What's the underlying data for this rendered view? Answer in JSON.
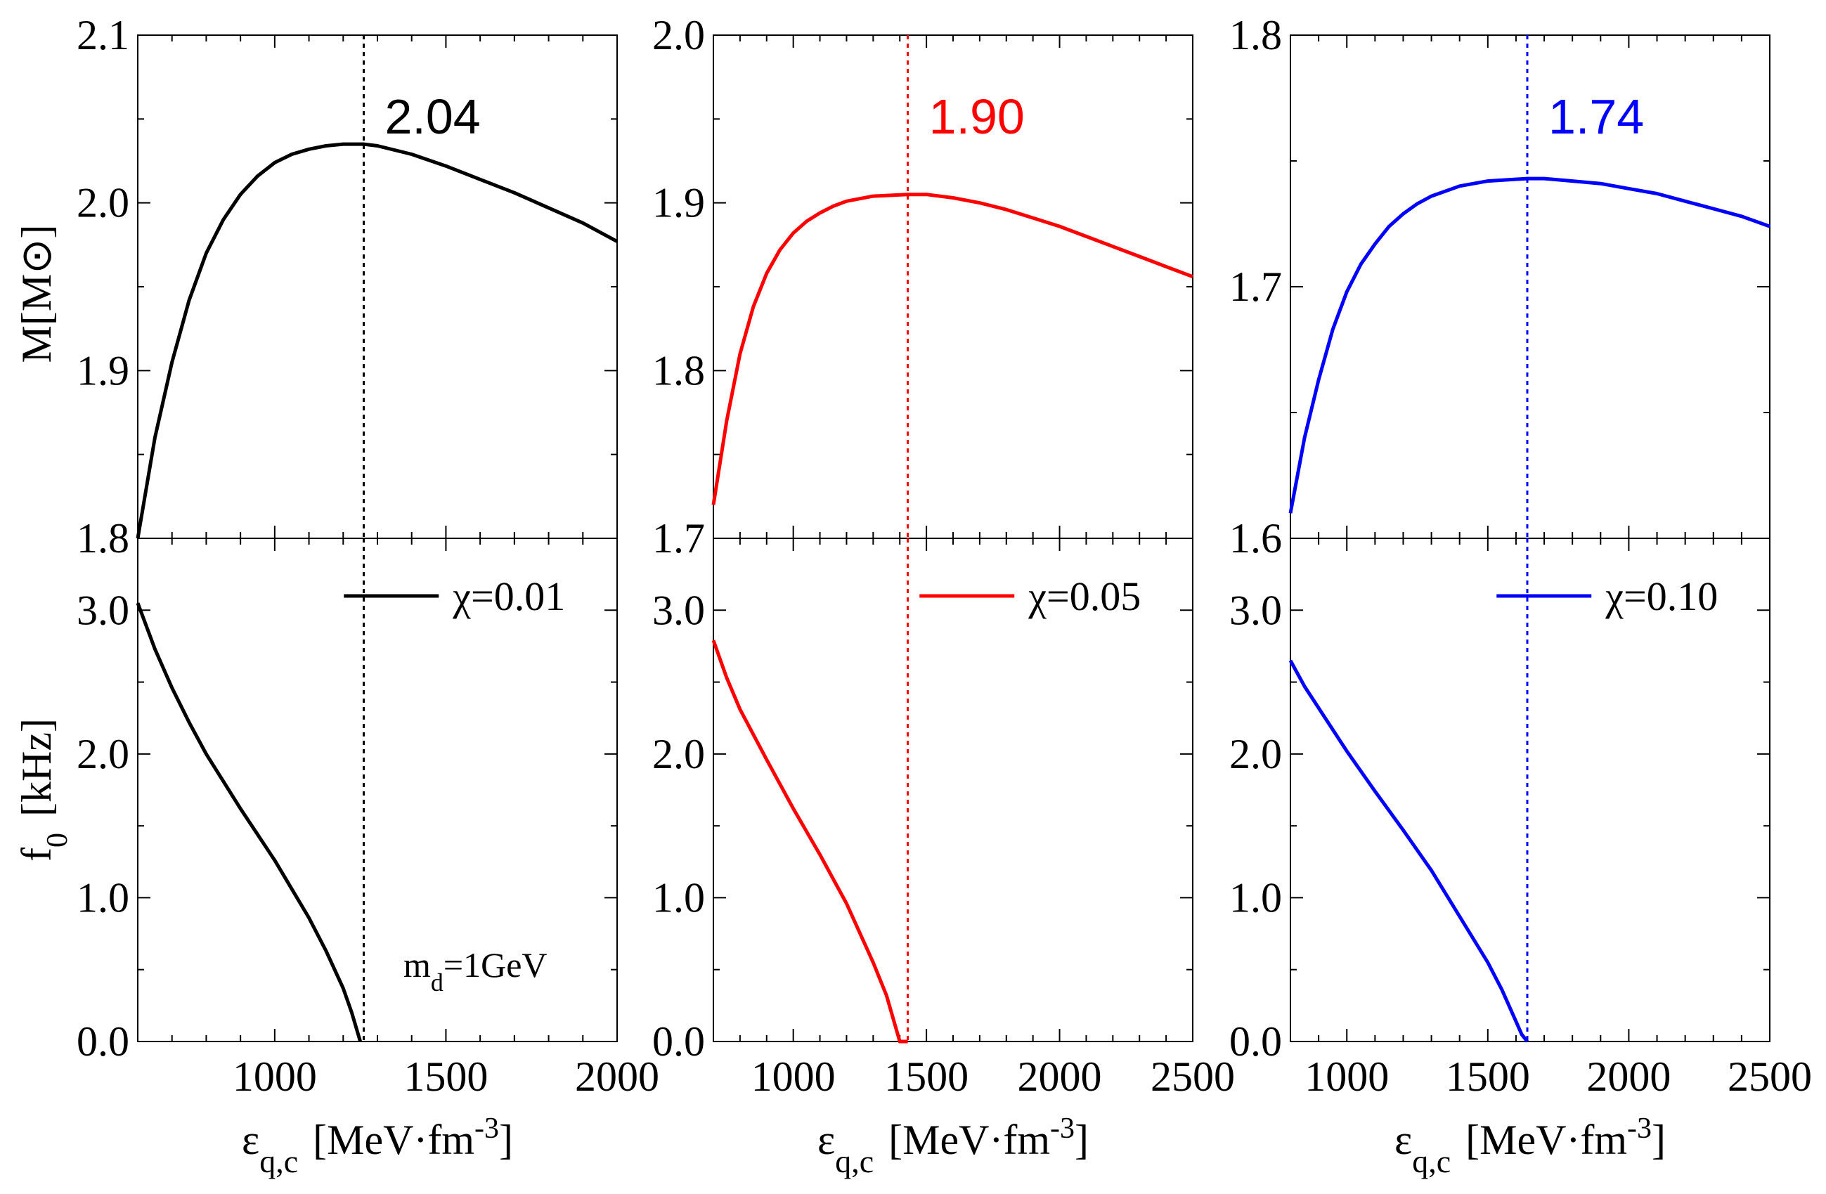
{
  "chart_data": [
    {
      "type": "line",
      "panel": "top-left",
      "color": "#000000",
      "xlim": [
        600,
        2000
      ],
      "ylim": [
        1.8,
        2.1
      ],
      "xticks": [
        1000,
        1500,
        2000
      ],
      "yticks": [
        "1.8",
        "1.9",
        "2.0",
        "2.1"
      ],
      "ylabel": "M[M⊙]",
      "annotation": "2.04",
      "vline_x": 1260,
      "series": [
        {
          "x": [
            600,
            650,
            700,
            750,
            800,
            850,
            900,
            950,
            1000,
            1050,
            1100,
            1150,
            1200,
            1260,
            1300,
            1400,
            1500,
            1600,
            1700,
            1800,
            1900,
            2000
          ],
          "y": [
            1.8,
            1.86,
            1.905,
            1.942,
            1.97,
            1.99,
            2.005,
            2.016,
            2.024,
            2.029,
            2.032,
            2.034,
            2.035,
            2.035,
            2.034,
            2.029,
            2.022,
            2.014,
            2.006,
            1.997,
            1.988,
            1.977
          ]
        }
      ]
    },
    {
      "type": "line",
      "panel": "top-middle",
      "color": "#ff0000",
      "xlim": [
        700,
        2500
      ],
      "ylim": [
        1.7,
        2.0
      ],
      "xticks": [
        1000,
        1500,
        2000,
        2500
      ],
      "yticks": [
        "1.7",
        "1.8",
        "1.9",
        "2.0"
      ],
      "annotation": "1.90",
      "vline_x": 1430,
      "series": [
        {
          "x": [
            700,
            750,
            800,
            850,
            900,
            950,
            1000,
            1050,
            1100,
            1150,
            1200,
            1300,
            1430,
            1500,
            1600,
            1700,
            1800,
            1900,
            2000,
            2100,
            2200,
            2300,
            2400,
            2500
          ],
          "y": [
            1.72,
            1.77,
            1.81,
            1.838,
            1.858,
            1.872,
            1.882,
            1.889,
            1.894,
            1.898,
            1.901,
            1.904,
            1.905,
            1.905,
            1.903,
            1.9,
            1.896,
            1.891,
            1.886,
            1.88,
            1.874,
            1.868,
            1.862,
            1.856
          ]
        }
      ]
    },
    {
      "type": "line",
      "panel": "top-right",
      "color": "#0000ff",
      "xlim": [
        800,
        2500
      ],
      "ylim": [
        1.6,
        1.8
      ],
      "xticks": [
        1000,
        1500,
        2000,
        2500
      ],
      "yticks": [
        "1.6",
        "1.7",
        "1.8"
      ],
      "annotation": "1.74",
      "vline_x": 1640,
      "series": [
        {
          "x": [
            800,
            850,
            900,
            950,
            1000,
            1050,
            1100,
            1150,
            1200,
            1250,
            1300,
            1400,
            1500,
            1640,
            1700,
            1800,
            1900,
            2000,
            2100,
            2200,
            2300,
            2400,
            2500
          ],
          "y": [
            1.61,
            1.64,
            1.663,
            1.683,
            1.698,
            1.709,
            1.717,
            1.724,
            1.729,
            1.733,
            1.736,
            1.74,
            1.742,
            1.743,
            1.743,
            1.742,
            1.741,
            1.739,
            1.737,
            1.734,
            1.731,
            1.728,
            1.724
          ]
        }
      ]
    },
    {
      "type": "line",
      "panel": "bottom-left",
      "color": "#000000",
      "xlim": [
        600,
        2000
      ],
      "ylim": [
        0.0,
        3.5
      ],
      "xticks": [
        1000,
        1500,
        2000
      ],
      "yticks": [
        "0.0",
        "1.0",
        "2.0",
        "3.0"
      ],
      "ylabel": "f0 [kHz]",
      "xlabel": "εq,c [MeV·fm-3]",
      "vline_x": 1260,
      "legend": "χ=0.01",
      "note": "md=1GeV",
      "series": [
        {
          "x": [
            600,
            650,
            700,
            750,
            800,
            900,
            1000,
            1100,
            1150,
            1200,
            1225,
            1250
          ],
          "y": [
            3.05,
            2.73,
            2.46,
            2.22,
            2.0,
            1.62,
            1.26,
            0.86,
            0.63,
            0.37,
            0.2,
            0.0
          ]
        }
      ]
    },
    {
      "type": "line",
      "panel": "bottom-middle",
      "color": "#ff0000",
      "xlim": [
        700,
        2500
      ],
      "ylim": [
        0.0,
        3.5
      ],
      "xticks": [
        1000,
        1500,
        2000,
        2500
      ],
      "yticks": [
        "0.0",
        "1.0",
        "2.0",
        "3.0"
      ],
      "xlabel": "εq,c [MeV·fm-3]",
      "vline_x": 1430,
      "legend": "χ=0.05",
      "series": [
        {
          "x": [
            700,
            750,
            800,
            900,
            1000,
            1100,
            1200,
            1300,
            1350,
            1400,
            1415,
            1430
          ],
          "y": [
            2.79,
            2.53,
            2.31,
            1.96,
            1.62,
            1.3,
            0.96,
            0.55,
            0.32,
            0.0,
            0.0,
            0.0
          ]
        }
      ]
    },
    {
      "type": "line",
      "panel": "bottom-right",
      "color": "#0000ff",
      "xlim": [
        800,
        2500
      ],
      "ylim": [
        0.0,
        3.5
      ],
      "xticks": [
        1000,
        1500,
        2000,
        2500
      ],
      "yticks": [
        "0.0",
        "1.0",
        "2.0",
        "3.0"
      ],
      "xlabel": "εq,c [MeV·fm-3]",
      "vline_x": 1640,
      "legend": "χ=0.10",
      "series": [
        {
          "x": [
            800,
            850,
            900,
            1000,
            1100,
            1200,
            1300,
            1400,
            1500,
            1550,
            1600,
            1620,
            1640
          ],
          "y": [
            2.65,
            2.47,
            2.32,
            2.02,
            1.74,
            1.47,
            1.19,
            0.87,
            0.55,
            0.36,
            0.14,
            0.05,
            0.0
          ]
        }
      ]
    }
  ]
}
